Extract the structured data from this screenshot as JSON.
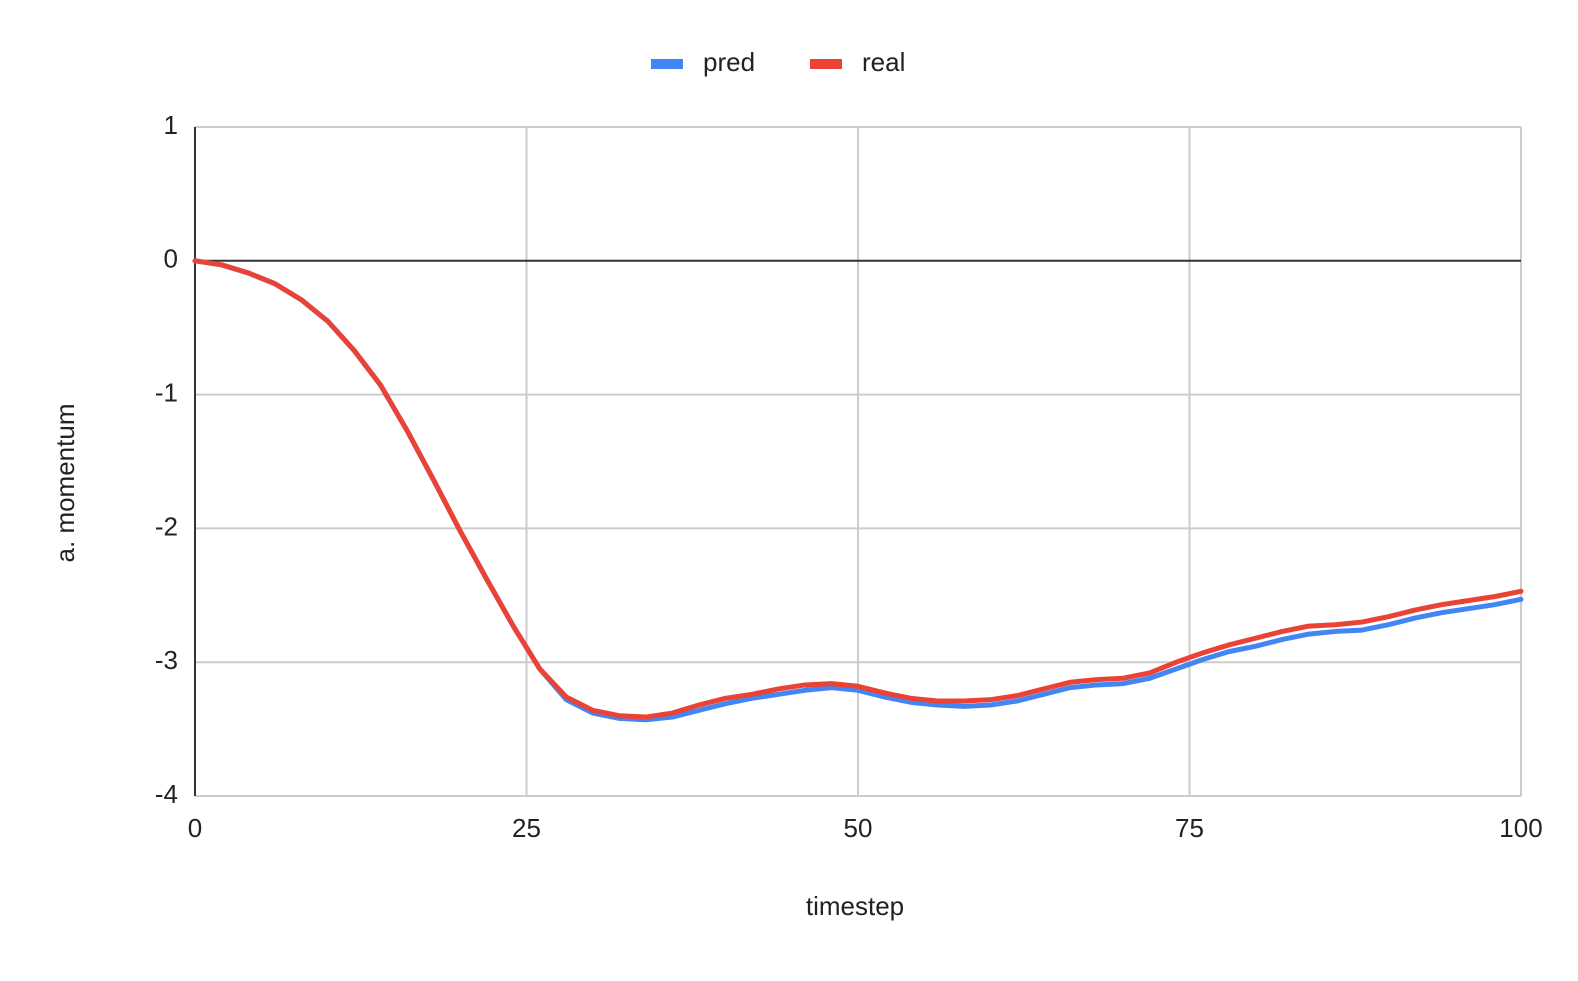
{
  "chart_data": {
    "type": "line",
    "x_label": "timestep",
    "y_label": "a. momentum",
    "x": [
      0,
      2,
      4,
      6,
      8,
      10,
      12,
      14,
      16,
      18,
      20,
      22,
      24,
      26,
      28,
      30,
      32,
      34,
      36,
      38,
      40,
      42,
      44,
      46,
      48,
      50,
      52,
      54,
      56,
      58,
      60,
      62,
      64,
      66,
      68,
      70,
      72,
      74,
      76,
      78,
      80,
      82,
      84,
      86,
      88,
      90,
      92,
      94,
      96,
      98,
      100
    ],
    "series": [
      {
        "name": "pred",
        "color": "#4285f4",
        "values": [
          0,
          -0.03,
          -0.09,
          -0.17,
          -0.29,
          -0.45,
          -0.67,
          -0.93,
          -1.27,
          -1.64,
          -2.02,
          -2.38,
          -2.73,
          -3.05,
          -3.28,
          -3.38,
          -3.42,
          -3.43,
          -3.41,
          -3.36,
          -3.31,
          -3.27,
          -3.24,
          -3.21,
          -3.19,
          -3.21,
          -3.26,
          -3.3,
          -3.32,
          -3.33,
          -3.32,
          -3.29,
          -3.24,
          -3.19,
          -3.17,
          -3.16,
          -3.12,
          -3.05,
          -2.98,
          -2.92,
          -2.88,
          -2.83,
          -2.79,
          -2.77,
          -2.76,
          -2.72,
          -2.67,
          -2.63,
          -2.6,
          -2.57,
          -2.53
        ]
      },
      {
        "name": "real",
        "color": "#ea4335",
        "values": [
          0,
          -0.03,
          -0.09,
          -0.17,
          -0.29,
          -0.45,
          -0.67,
          -0.93,
          -1.27,
          -1.64,
          -2.02,
          -2.38,
          -2.73,
          -3.05,
          -3.26,
          -3.36,
          -3.4,
          -3.41,
          -3.38,
          -3.32,
          -3.27,
          -3.24,
          -3.2,
          -3.17,
          -3.16,
          -3.18,
          -3.23,
          -3.27,
          -3.29,
          -3.29,
          -3.28,
          -3.25,
          -3.2,
          -3.15,
          -3.13,
          -3.12,
          -3.08,
          -3.0,
          -2.93,
          -2.87,
          -2.82,
          -2.77,
          -2.73,
          -2.72,
          -2.7,
          -2.66,
          -2.61,
          -2.57,
          -2.54,
          -2.51,
          -2.47
        ]
      }
    ],
    "xlim": [
      0,
      100
    ],
    "xticks": [
      0,
      25,
      50,
      75,
      100
    ],
    "ylim": [
      -4,
      1
    ],
    "yticks": [
      -4,
      -3,
      -2,
      -1,
      0,
      1
    ],
    "grid": true,
    "legend": "top"
  }
}
